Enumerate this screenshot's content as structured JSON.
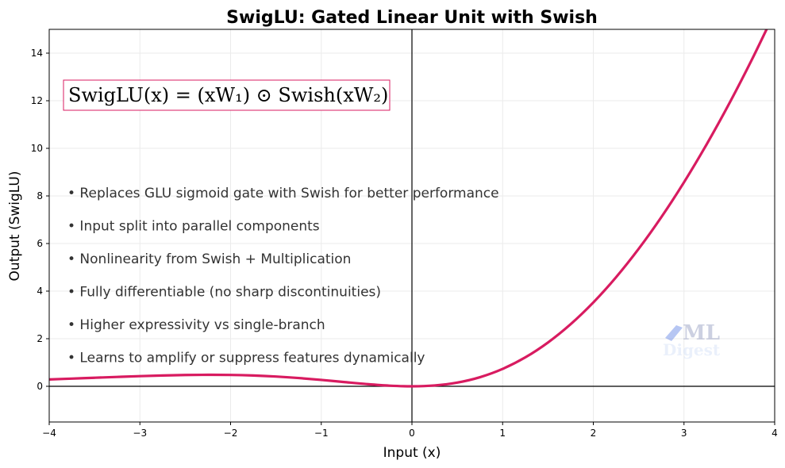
{
  "chart_data": {
    "type": "line",
    "title": "SwigLU: Gated Linear Unit with Swish",
    "xlabel": "Input (x)",
    "ylabel": "Output (SwigLU)",
    "xlim": [
      -4,
      4
    ],
    "ylim": [
      -1.5,
      15
    ],
    "xticks": [
      -4,
      -3,
      -2,
      -1,
      0,
      1,
      2,
      3,
      4
    ],
    "yticks": [
      0,
      2,
      4,
      6,
      8,
      10,
      12,
      14
    ],
    "xtick_labels": [
      "−4",
      "−3",
      "−2",
      "−1",
      "0",
      "1",
      "2",
      "3",
      "4"
    ],
    "ytick_labels": [
      "0",
      "2",
      "4",
      "6",
      "8",
      "10",
      "12",
      "14"
    ],
    "grid": true,
    "series": [
      {
        "name": "SwigLU",
        "color": "#d81b60",
        "x": [
          -4,
          -3.75,
          -3.5,
          -3.25,
          -3,
          -2.75,
          -2.5,
          -2.25,
          -2,
          -1.75,
          -1.5,
          -1.25,
          -1,
          -0.75,
          -0.5,
          -0.25,
          0,
          0.25,
          0.5,
          0.75,
          1,
          1.25,
          1.5,
          1.75,
          2,
          2.25,
          2.5,
          2.75,
          3,
          3.25,
          3.5,
          3.75,
          4
        ],
        "y": [
          0.288,
          0.323,
          0.359,
          0.394,
          0.427,
          0.454,
          0.474,
          0.483,
          0.477,
          0.453,
          0.41,
          0.348,
          0.269,
          0.18,
          0.094,
          0.027,
          0,
          0.035,
          0.156,
          0.382,
          0.731,
          1.215,
          1.84,
          2.609,
          3.523,
          4.58,
          5.776,
          7.108,
          8.573,
          10.169,
          11.891,
          13.739,
          15.712
        ]
      }
    ],
    "formula": "SwigLU(x) = (xW₁) ⊙ Swish(xW₂)",
    "formula_color": "#d81b60",
    "annotations": [
      "• Replaces GLU sigmoid gate with Swish for better performance",
      "• Input split into parallel components",
      "• Nonlinearity from Swish + Multiplication",
      "• Fully differentiable (no sharp discontinuities)",
      "• Higher expressivity vs single-branch",
      "• Learns to amplify or suppress features dynamically"
    ],
    "watermark": "ML Digest"
  }
}
